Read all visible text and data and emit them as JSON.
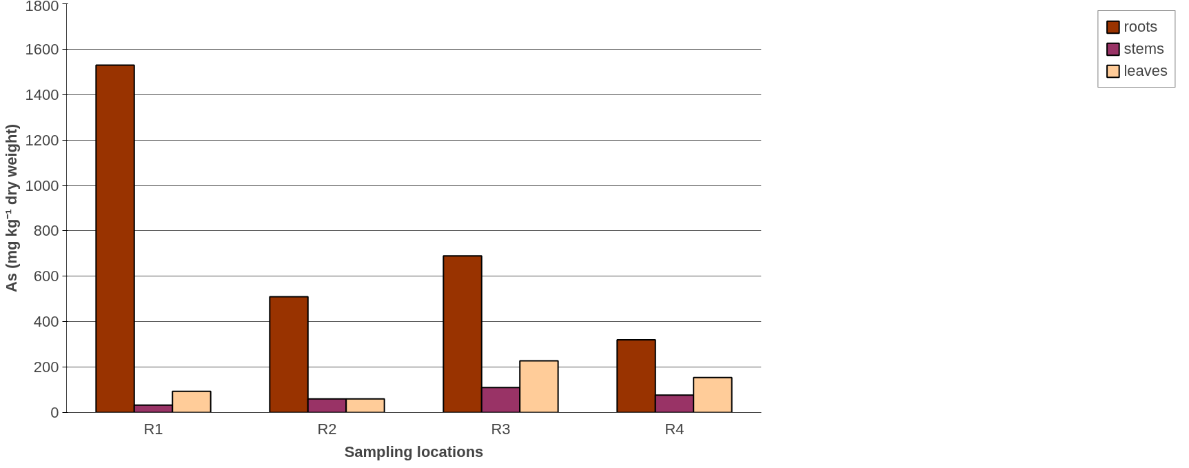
{
  "chart_data": {
    "type": "bar",
    "xlabel": "Sampling locations",
    "ylabel": "As (mg kg⁻¹ dry weight)",
    "categories": [
      "R1",
      "R2",
      "R3",
      "R4"
    ],
    "series": [
      {
        "name": "roots",
        "color": "#993300",
        "values": [
          1530,
          510,
          690,
          320
        ]
      },
      {
        "name": "stems",
        "color": "#993366",
        "values": [
          33,
          60,
          110,
          77
        ]
      },
      {
        "name": "leaves",
        "color": "#ffcc99",
        "values": [
          93,
          60,
          228,
          154
        ]
      }
    ],
    "ylim": [
      0,
      1800
    ],
    "yticks": [
      0,
      200,
      400,
      600,
      800,
      1000,
      1200,
      1400,
      1600,
      1800
    ],
    "grid": "y",
    "legend": "right"
  }
}
